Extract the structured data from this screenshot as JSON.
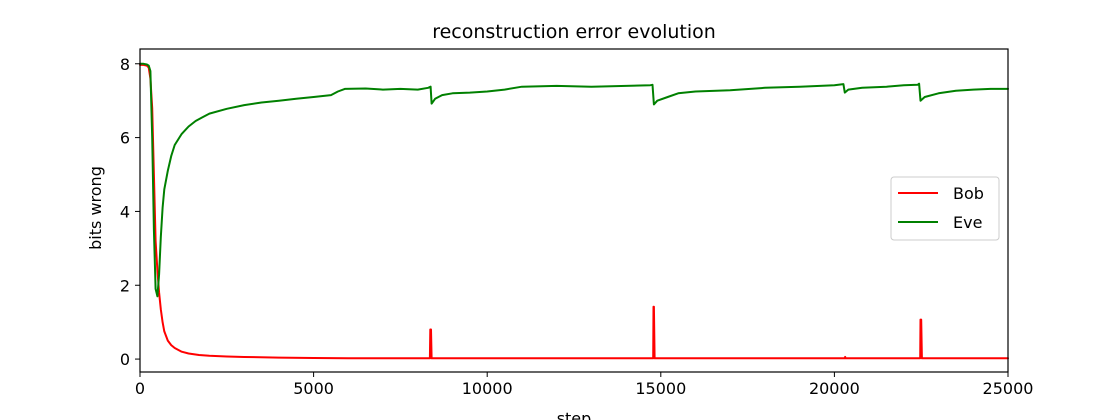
{
  "chart_data": {
    "type": "line",
    "title": "reconstruction error evolution",
    "xlabel": "step",
    "ylabel": "bits wrong",
    "xlim": [
      0,
      25000
    ],
    "ylim": [
      -0.35,
      8.4
    ],
    "xticks": [
      0,
      5000,
      10000,
      15000,
      20000,
      25000
    ],
    "xtick_labels": [
      "0",
      "5000",
      "10000",
      "15000",
      "20000",
      "25000"
    ],
    "yticks": [
      0,
      2,
      4,
      6,
      8
    ],
    "ytick_labels": [
      "0",
      "2",
      "4",
      "6",
      "8"
    ],
    "grid": false,
    "legend_position": "center-right",
    "series": [
      {
        "name": "Bob",
        "color": "#ff0000",
        "x": [
          0,
          100,
          200,
          250,
          300,
          350,
          400,
          450,
          500,
          550,
          600,
          650,
          700,
          800,
          900,
          1000,
          1200,
          1400,
          1700,
          2000,
          2500,
          3000,
          4000,
          5000,
          6000,
          7000,
          8000,
          8350,
          8360,
          8380,
          8400,
          8420,
          8440,
          9000,
          10000,
          12000,
          14000,
          14700,
          14780,
          14790,
          14800,
          14820,
          14840,
          15000,
          17000,
          20000,
          20300,
          20310,
          20320,
          20340,
          22000,
          22450,
          22470,
          22480,
          22500,
          22520,
          22540,
          23000,
          25000
        ],
        "y": [
          7.97,
          7.97,
          7.95,
          7.9,
          7.6,
          6.8,
          5.0,
          3.2,
          2.4,
          1.8,
          1.35,
          1.0,
          0.75,
          0.5,
          0.38,
          0.3,
          0.2,
          0.15,
          0.11,
          0.09,
          0.07,
          0.055,
          0.04,
          0.03,
          0.025,
          0.02,
          0.02,
          0.02,
          0.8,
          0.8,
          0.02,
          0.02,
          0.02,
          0.02,
          0.02,
          0.02,
          0.02,
          0.02,
          0.02,
          1.42,
          1.42,
          0.02,
          0.02,
          0.02,
          0.02,
          0.02,
          0.02,
          0.06,
          0.02,
          0.02,
          0.02,
          0.02,
          0.02,
          1.07,
          1.07,
          0.02,
          0.02,
          0.02,
          0.02
        ]
      },
      {
        "name": "Eve",
        "color": "#008000",
        "x": [
          0,
          100,
          200,
          250,
          300,
          350,
          400,
          450,
          500,
          550,
          600,
          650,
          700,
          800,
          900,
          1000,
          1200,
          1400,
          1600,
          1800,
          2000,
          2500,
          3000,
          3500,
          4000,
          4500,
          5000,
          5500,
          5700,
          5900,
          6500,
          7000,
          7500,
          8000,
          8300,
          8370,
          8400,
          8500,
          8700,
          9000,
          9500,
          10000,
          10500,
          11000,
          12000,
          13000,
          14000,
          14700,
          14760,
          14800,
          14900,
          15200,
          15500,
          16000,
          17000,
          18000,
          19000,
          20000,
          20260,
          20300,
          20400,
          20800,
          21500,
          22000,
          22400,
          22440,
          22480,
          22600,
          23000,
          23500,
          24000,
          24500,
          25000
        ],
        "y": [
          8.0,
          8.0,
          7.98,
          7.95,
          7.8,
          6.0,
          3.5,
          1.9,
          1.7,
          2.3,
          3.3,
          4.1,
          4.6,
          5.1,
          5.5,
          5.8,
          6.1,
          6.3,
          6.45,
          6.55,
          6.65,
          6.78,
          6.88,
          6.95,
          7.0,
          7.05,
          7.1,
          7.15,
          7.25,
          7.32,
          7.33,
          7.3,
          7.32,
          7.3,
          7.35,
          7.38,
          6.92,
          7.05,
          7.15,
          7.2,
          7.22,
          7.25,
          7.3,
          7.38,
          7.4,
          7.38,
          7.4,
          7.42,
          7.43,
          6.9,
          7.0,
          7.1,
          7.2,
          7.25,
          7.28,
          7.35,
          7.38,
          7.42,
          7.45,
          7.22,
          7.3,
          7.35,
          7.38,
          7.42,
          7.43,
          7.46,
          7.0,
          7.1,
          7.2,
          7.27,
          7.3,
          7.32,
          7.32
        ]
      }
    ]
  }
}
